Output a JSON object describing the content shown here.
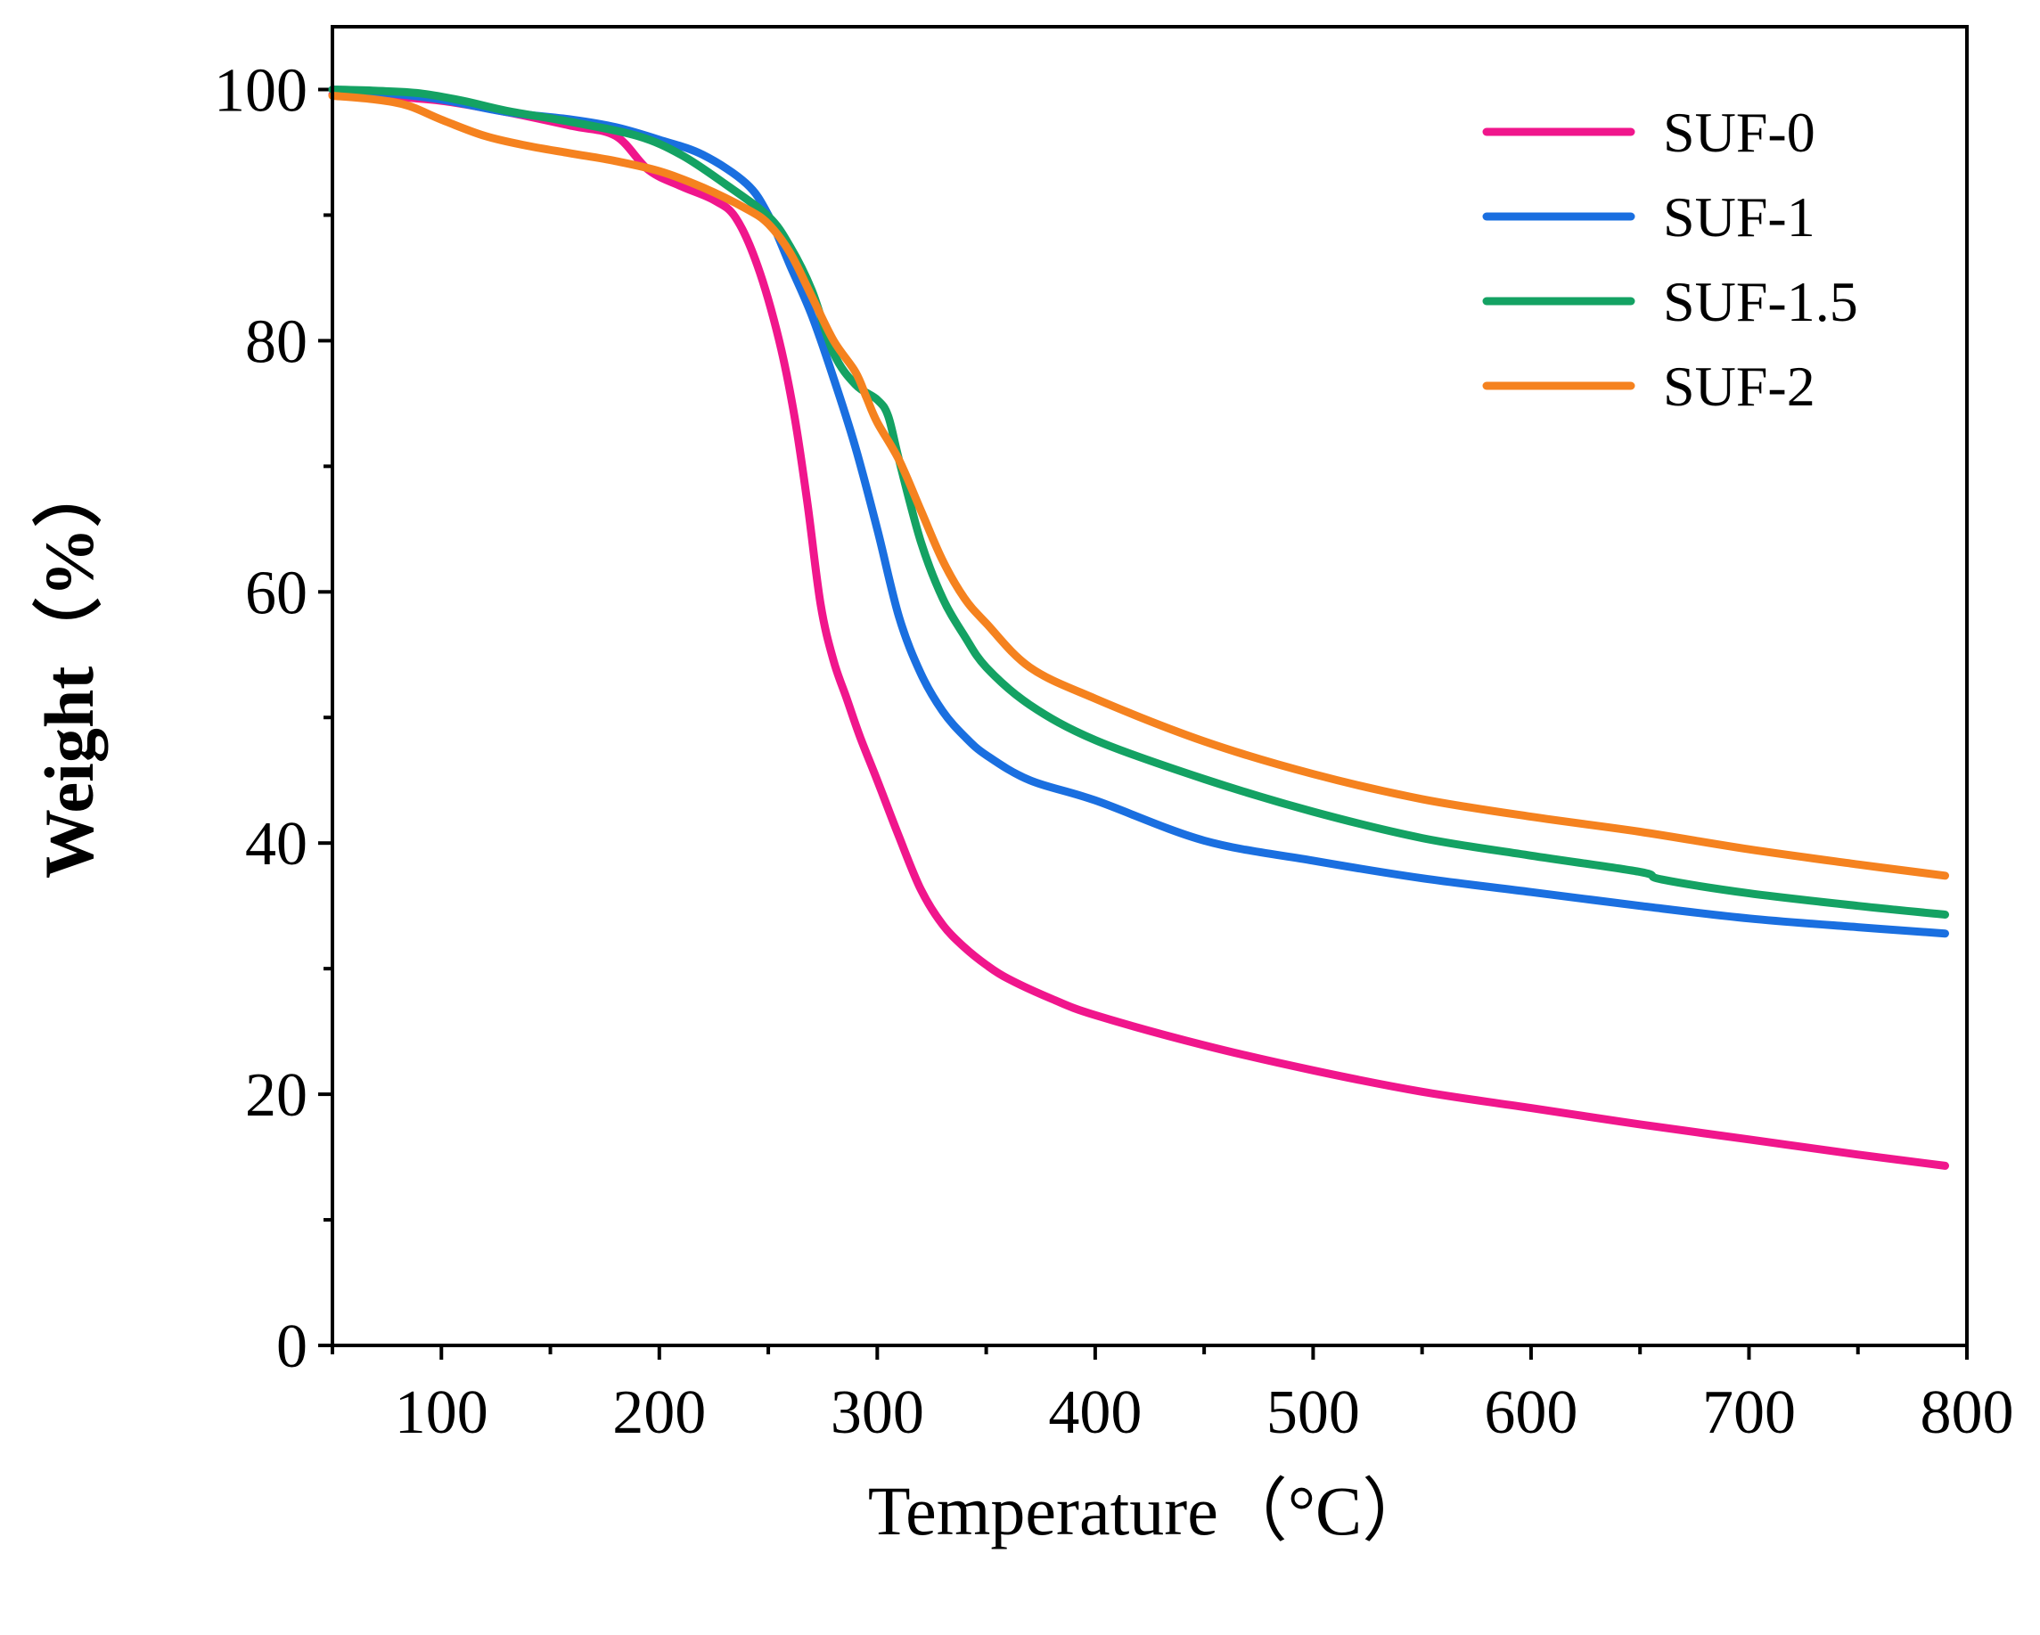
{
  "chart_data": {
    "type": "line",
    "title": "",
    "xlabel": "Temperature（°C）",
    "ylabel": "Weight（%）",
    "xlim": [
      50,
      800
    ],
    "ylim": [
      0,
      105
    ],
    "x_major_ticks": [
      100,
      200,
      300,
      400,
      500,
      600,
      700,
      800
    ],
    "x_minor_ticks": [
      50,
      150,
      250,
      350,
      450,
      550,
      650,
      750
    ],
    "x_tick_labels": [
      "100",
      "200",
      "300",
      "400",
      "500",
      "600",
      "700",
      "800"
    ],
    "y_major_ticks": [
      0,
      20,
      40,
      60,
      80,
      100
    ],
    "y_minor_ticks": [
      10,
      30,
      50,
      70,
      90
    ],
    "y_tick_labels": [
      "0",
      "20",
      "40",
      "60",
      "80",
      "100"
    ],
    "grid": false,
    "legend_position": "top-right",
    "series": [
      {
        "name": "SUF-0",
        "color": "#F0168C",
        "x": [
          50,
          70,
          100,
          130,
          160,
          180,
          195,
          210,
          225,
          235,
          245,
          255,
          262,
          268,
          274,
          280,
          286,
          292,
          300,
          310,
          320,
          330,
          340,
          350,
          360,
          380,
          400,
          450,
          500,
          550,
          600,
          650,
          700,
          750,
          790
        ],
        "y": [
          99.6,
          99.5,
          99.1,
          98.2,
          97.1,
          96.3,
          93.6,
          92.3,
          91.2,
          89.8,
          86.0,
          80.0,
          74.0,
          67.0,
          59.0,
          54.5,
          51.5,
          48.5,
          45.0,
          40.5,
          36.3,
          33.5,
          31.7,
          30.3,
          29.2,
          27.6,
          26.3,
          23.9,
          21.9,
          20.2,
          18.9,
          17.6,
          16.4,
          15.2,
          14.3
        ]
      },
      {
        "name": "SUF-1",
        "color": "#1A6FE0",
        "x": [
          50,
          70,
          100,
          130,
          160,
          180,
          200,
          220,
          240,
          250,
          260,
          270,
          280,
          290,
          300,
          310,
          320,
          330,
          340,
          350,
          370,
          400,
          450,
          500,
          550,
          600,
          650,
          700,
          750,
          790
        ],
        "y": [
          100,
          99.8,
          99.2,
          98.2,
          97.6,
          97.0,
          96.0,
          94.8,
          92.5,
          90.0,
          86.0,
          82.0,
          77.0,
          71.5,
          65.0,
          58.0,
          53.5,
          50.5,
          48.5,
          47.0,
          45.0,
          43.4,
          40.2,
          38.6,
          37.2,
          36.1,
          35.0,
          34.0,
          33.3,
          32.8
        ]
      },
      {
        "name": "SUF-1.5",
        "color": "#14A263",
        "x": [
          50,
          70,
          90,
          110,
          130,
          160,
          190,
          210,
          230,
          250,
          260,
          270,
          280,
          290,
          300,
          305,
          310,
          320,
          330,
          340,
          350,
          370,
          400,
          450,
          500,
          550,
          600,
          650,
          660,
          700,
          750,
          790
        ],
        "y": [
          100,
          99.9,
          99.7,
          99.1,
          98.3,
          97.4,
          96.3,
          94.8,
          92.5,
          89.9,
          87.5,
          84.0,
          79.0,
          76.5,
          75.3,
          74.0,
          70.5,
          64.0,
          59.5,
          56.5,
          54.0,
          51.0,
          48.2,
          45.1,
          42.5,
          40.4,
          39.0,
          37.7,
          37.1,
          36.0,
          35.0,
          34.3
        ]
      },
      {
        "name": "SUF-2",
        "color": "#F5821F",
        "x": [
          50,
          70,
          85,
          100,
          120,
          140,
          160,
          180,
          200,
          220,
          240,
          250,
          260,
          270,
          280,
          290,
          295,
          300,
          310,
          320,
          330,
          340,
          350,
          370,
          400,
          450,
          500,
          550,
          600,
          650,
          700,
          750,
          790
        ],
        "y": [
          99.5,
          99.2,
          98.7,
          97.6,
          96.3,
          95.5,
          94.9,
          94.3,
          93.5,
          92.2,
          90.5,
          89.3,
          87.0,
          83.5,
          80.0,
          77.5,
          75.5,
          73.5,
          70.5,
          66.5,
          62.5,
          59.5,
          57.5,
          54.0,
          51.5,
          48.1,
          45.5,
          43.5,
          42.1,
          40.9,
          39.5,
          38.3,
          37.4
        ]
      }
    ]
  }
}
